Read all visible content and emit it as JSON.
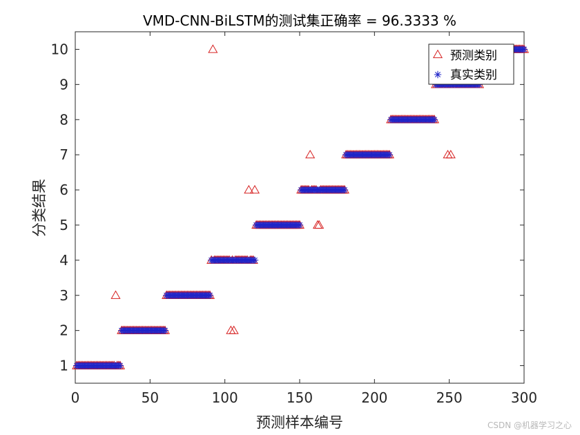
{
  "chart_data": {
    "type": "scatter",
    "title": "VMD-CNN-BiLSTM的测试集正确率 = 96.3333 %",
    "xlabel": "预测样本编号",
    "ylabel": "分类结果",
    "xlim": [
      0,
      300
    ],
    "ylim": [
      0.5,
      10.5
    ],
    "xticks": [
      "0",
      "50",
      "100",
      "150",
      "200",
      "250",
      "300"
    ],
    "yticks": [
      "1",
      "2",
      "3",
      "4",
      "5",
      "6",
      "7",
      "8",
      "9",
      "10"
    ],
    "grid": false,
    "legend_position": "top-right",
    "class_block_size": 30,
    "series": [
      {
        "name": "预测类别",
        "marker": "triangle",
        "color": "#d62020"
      },
      {
        "name": "真实类别",
        "marker": "asterisk",
        "color": "#1f24c8"
      }
    ],
    "misclassified": [
      {
        "x": 27,
        "true": 1,
        "predicted": 3
      },
      {
        "x": 92,
        "true": 4,
        "predicted": 10
      },
      {
        "x": 104,
        "true": 4,
        "predicted": 2
      },
      {
        "x": 106,
        "true": 4,
        "predicted": 2
      },
      {
        "x": 116,
        "true": 4,
        "predicted": 6
      },
      {
        "x": 120,
        "true": 4,
        "predicted": 6
      },
      {
        "x": 157,
        "true": 6,
        "predicted": 7
      },
      {
        "x": 162,
        "true": 6,
        "predicted": 5
      },
      {
        "x": 163,
        "true": 6,
        "predicted": 5
      },
      {
        "x": 249,
        "true": 9,
        "predicted": 7
      },
      {
        "x": 251,
        "true": 9,
        "predicted": 7
      }
    ]
  },
  "watermark": "CSDN @机器学习之心"
}
